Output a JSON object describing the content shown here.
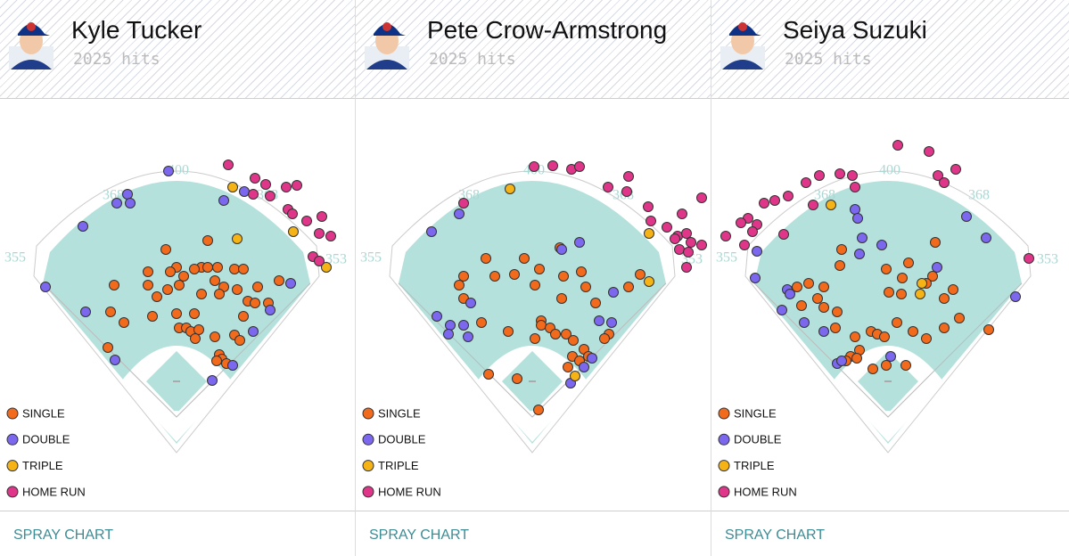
{
  "chart_data": [
    {
      "type": "scatter",
      "title": "Kyle Tucker",
      "subtitle": "2025 hits",
      "footer": "SPRAY CHART",
      "fence_labels": [
        355,
        368,
        400,
        368,
        353
      ],
      "xlim": [
        -198,
        198
      ],
      "ylim": [
        -105,
        356
      ],
      "series": [
        {
          "name": "SINGLE",
          "color": "#f26a1b",
          "x": [
            35,
            -12,
            0,
            28,
            20,
            35,
            46,
            65,
            75,
            -32,
            -7,
            8,
            -70,
            -32,
            -10,
            3,
            43,
            53,
            48,
            68,
            91,
            115,
            -22,
            28,
            80,
            88,
            103,
            -74,
            -27,
            0,
            20,
            -59,
            75,
            3,
            11,
            16,
            25,
            21,
            43,
            65,
            71,
            -77,
            48,
            51,
            45,
            56
          ],
          "y": [
            198,
            188,
            168,
            168,
            166,
            168,
            168,
            166,
            166,
            163,
            163,
            158,
            148,
            148,
            143,
            148,
            153,
            146,
            138,
            143,
            146,
            153,
            135,
            138,
            130,
            128,
            128,
            118,
            113,
            116,
            116,
            106,
            113,
            100,
            100,
            96,
            98,
            88,
            90,
            92,
            86,
            78,
            70,
            65,
            63,
            60
          ]
        },
        {
          "name": "DOUBLE",
          "color": "#7b68ee",
          "x": [
            -9,
            -55,
            -67,
            -52,
            53,
            76,
            -105,
            -147,
            -102,
            -69,
            40,
            63,
            86,
            105,
            128
          ],
          "y": [
            276,
            250,
            240,
            240,
            243,
            253,
            214,
            146,
            118,
            64,
            41,
            58,
            96,
            120,
            150
          ]
        },
        {
          "name": "TRIPLE",
          "color": "#f5b315",
          "x": [
            63,
            68,
            131,
            168
          ],
          "y": [
            258,
            200,
            208,
            168
          ]
        },
        {
          "name": "HOME RUN",
          "color": "#e0368a",
          "x": [
            58,
            88,
            100,
            86,
            105,
            123,
            135,
            125,
            130,
            146,
            163,
            160,
            173,
            153,
            160
          ],
          "y": [
            283,
            268,
            261,
            250,
            248,
            258,
            260,
            233,
            228,
            220,
            225,
            206,
            203,
            180,
            175
          ]
        }
      ]
    },
    {
      "type": "scatter",
      "title": "Pete Crow-Armstrong",
      "subtitle": "2025 hits",
      "footer": "SPRAY CHART",
      "fence_labels": [
        355,
        368,
        400,
        368,
        353
      ],
      "xlim": [
        -198,
        198
      ],
      "ylim": [
        -105,
        356
      ],
      "series": [
        {
          "name": "SINGLE",
          "color": "#f26a1b",
          "x": [
            -9,
            8,
            31,
            -52,
            -77,
            -42,
            -20,
            35,
            55,
            3,
            -82,
            60,
            108,
            121,
            33,
            71,
            -77,
            -57,
            10,
            10,
            20,
            26,
            -27,
            38,
            46,
            58,
            63,
            45,
            53,
            40,
            3,
            -17,
            -49,
            7,
            86,
            81
          ],
          "y": [
            178,
            166,
            190,
            178,
            158,
            158,
            160,
            158,
            163,
            148,
            148,
            146,
            146,
            160,
            133,
            128,
            133,
            106,
            108,
            103,
            100,
            93,
            96,
            93,
            86,
            76,
            68,
            68,
            63,
            56,
            88,
            43,
            48,
            8,
            93,
            88
          ]
        },
        {
          "name": "DOUBLE",
          "color": "#7b68ee",
          "x": [
            -82,
            -113,
            53,
            33,
            -107,
            -92,
            -77,
            -94,
            -72,
            -69,
            91,
            75,
            89,
            67,
            58,
            43
          ],
          "y": [
            228,
            208,
            196,
            188,
            113,
            103,
            103,
            93,
            90,
            128,
            140,
            108,
            106,
            66,
            56,
            38
          ]
        },
        {
          "name": "TRIPLE",
          "color": "#f5b315",
          "x": [
            -25,
            131,
            131,
            48
          ],
          "y": [
            256,
            206,
            152,
            46
          ]
        },
        {
          "name": "HOME RUN",
          "color": "#e0368a",
          "x": [
            2,
            23,
            44,
            53,
            -77,
            85,
            108,
            106,
            130,
            133,
            168,
            190,
            151,
            163,
            173,
            178,
            190,
            165,
            175,
            173,
            160
          ],
          "y": [
            281,
            282,
            278,
            281,
            240,
            258,
            270,
            253,
            236,
            220,
            228,
            246,
            213,
            203,
            206,
            196,
            193,
            188,
            185,
            168,
            200
          ]
        }
      ]
    },
    {
      "type": "scatter",
      "title": "Seiya Suzuki",
      "subtitle": "2025 hits",
      "footer": "SPRAY CHART",
      "fence_labels": [
        355,
        368,
        400,
        368,
        353
      ],
      "xlim": [
        -198,
        198
      ],
      "ylim": [
        -105,
        356
      ],
      "series": [
        {
          "name": "SINGLE",
          "color": "#f26a1b",
          "x": [
            -52,
            53,
            -54,
            -2,
            23,
            50,
            43,
            16,
            73,
            -102,
            -89,
            -72,
            -79,
            -97,
            -72,
            -57,
            1,
            15,
            63,
            80,
            10,
            -59,
            -19,
            -12,
            -4,
            -37,
            28,
            63,
            113,
            43,
            -32,
            -42,
            -47,
            -35,
            20,
            -17,
            -2
          ],
          "y": [
            188,
            196,
            170,
            166,
            173,
            158,
            150,
            156,
            143,
            146,
            150,
            146,
            133,
            125,
            123,
            118,
            140,
            138,
            133,
            111,
            106,
            100,
            96,
            93,
            90,
            90,
            96,
            100,
            98,
            88,
            75,
            68,
            63,
            66,
            58,
            54,
            58
          ]
        },
        {
          "name": "DOUBLE",
          "color": "#7b68ee",
          "x": [
            -37,
            -34,
            -29,
            -7,
            -32,
            -147,
            88,
            110,
            55,
            -149,
            -113,
            -119,
            -94,
            -72,
            -110,
            -57,
            -52,
            143,
            3
          ],
          "y": [
            233,
            223,
            201,
            193,
            183,
            186,
            225,
            201,
            168,
            156,
            143,
            120,
            106,
            96,
            138,
            60,
            63,
            135,
            68
          ]
        },
        {
          "name": "TRIPLE",
          "color": "#f5b315",
          "x": [
            -64,
            38,
            36
          ],
          "y": [
            238,
            150,
            138
          ]
        },
        {
          "name": "HOME RUN",
          "color": "#e0368a",
          "x": [
            11,
            46,
            76,
            56,
            63,
            -54,
            -40,
            -37,
            -77,
            -92,
            -112,
            -127,
            -139,
            -84,
            -157,
            -147,
            -165,
            -152,
            -182,
            -117,
            158,
            -161
          ],
          "y": [
            305,
            298,
            278,
            271,
            263,
            273,
            271,
            258,
            271,
            263,
            248,
            243,
            240,
            238,
            223,
            216,
            218,
            208,
            203,
            205,
            178,
            193
          ]
        }
      ]
    }
  ]
}
